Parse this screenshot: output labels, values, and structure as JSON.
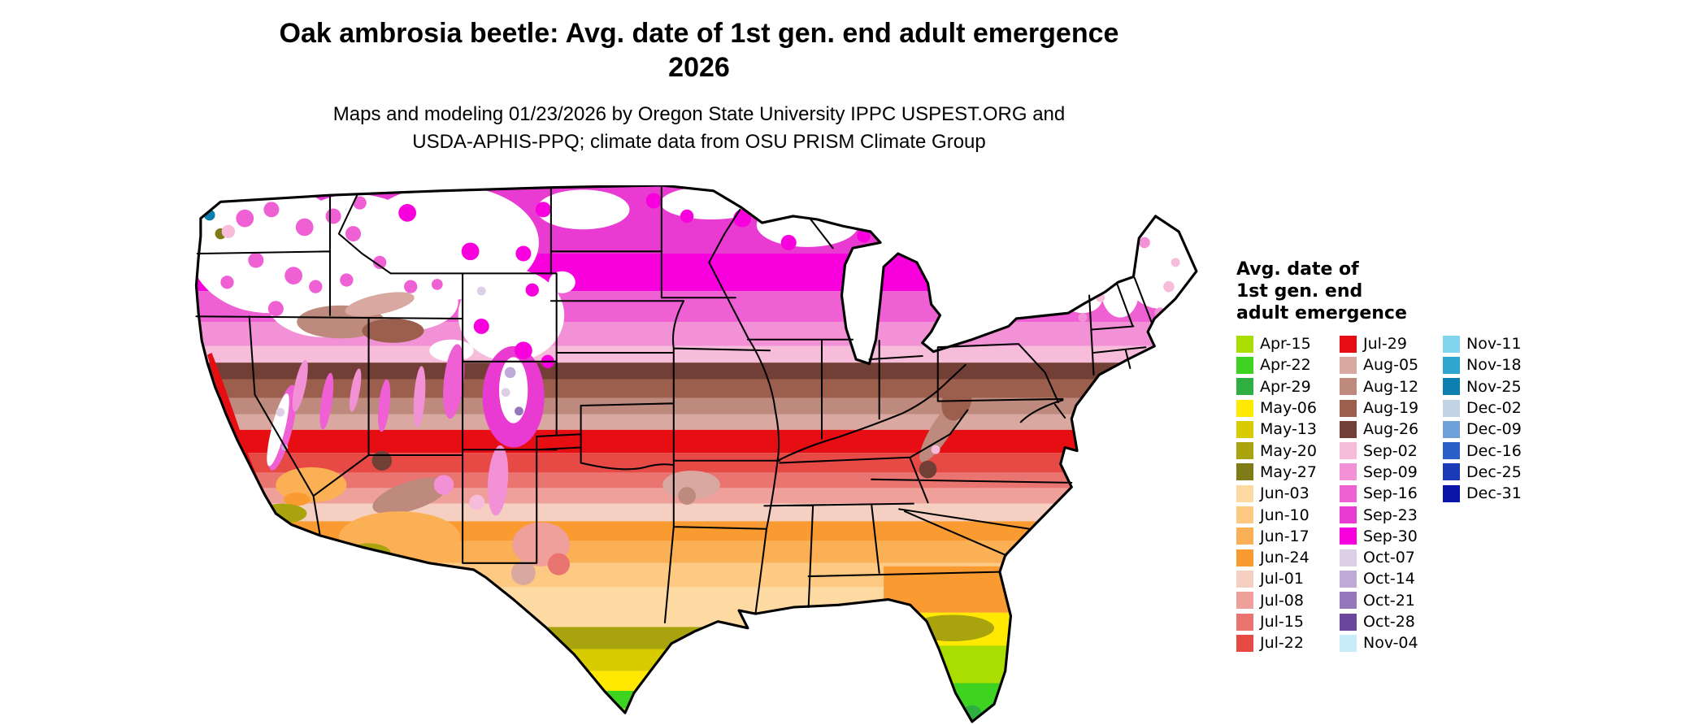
{
  "title": {
    "line1": "Oak ambrosia beetle: Avg. date of 1st gen. end adult emergence",
    "line2": "2026"
  },
  "subtitle": {
    "line1": "Maps and modeling 01/23/2026 by Oregon State University IPPC USPEST.ORG and",
    "line2": "USDA-APHIS-PPQ; climate data from OSU PRISM Climate Group"
  },
  "colors": {
    "background": "#ffffff",
    "map_outline": "#000000",
    "no_data": "#ffffff"
  },
  "legend": {
    "title_lines": [
      "Avg. date of",
      "1st gen. end",
      "adult emergence"
    ],
    "columns": [
      [
        {
          "label": "Apr-15",
          "color": "#aade00"
        },
        {
          "label": "Apr-22",
          "color": "#3ed321"
        },
        {
          "label": "Apr-29",
          "color": "#2fae41"
        },
        {
          "label": "May-06",
          "color": "#ffe900"
        },
        {
          "label": "May-13",
          "color": "#d8cb00"
        },
        {
          "label": "May-20",
          "color": "#a9a40e"
        },
        {
          "label": "May-27",
          "color": "#7f7b17"
        },
        {
          "label": "Jun-03",
          "color": "#fddaa2"
        },
        {
          "label": "Jun-10",
          "color": "#fdc983"
        },
        {
          "label": "Jun-17",
          "color": "#fcb055"
        },
        {
          "label": "Jun-24",
          "color": "#f99b31"
        },
        {
          "label": "Jul-01",
          "color": "#f5d0c2"
        },
        {
          "label": "Jul-08",
          "color": "#efa09b"
        },
        {
          "label": "Jul-15",
          "color": "#ea7470"
        },
        {
          "label": "Jul-22",
          "color": "#e74a45"
        }
      ],
      [
        {
          "label": "Jul-29",
          "color": "#e60d13"
        },
        {
          "label": "Aug-05",
          "color": "#d9a8a0"
        },
        {
          "label": "Aug-12",
          "color": "#bd8a7d"
        },
        {
          "label": "Aug-19",
          "color": "#9d5f4d"
        },
        {
          "label": "Aug-26",
          "color": "#713f35"
        },
        {
          "label": "Sep-02",
          "color": "#f8bcdb"
        },
        {
          "label": "Sep-09",
          "color": "#f391d6"
        },
        {
          "label": "Sep-16",
          "color": "#ee60d3"
        },
        {
          "label": "Sep-23",
          "color": "#e93bd1"
        },
        {
          "label": "Sep-30",
          "color": "#f800dd"
        },
        {
          "label": "Oct-07",
          "color": "#dccfe6"
        },
        {
          "label": "Oct-14",
          "color": "#bfa9d6"
        },
        {
          "label": "Oct-21",
          "color": "#9577bb"
        },
        {
          "label": "Oct-28",
          "color": "#6b479c"
        },
        {
          "label": "Nov-04",
          "color": "#c9ecfa"
        }
      ],
      [
        {
          "label": "Nov-11",
          "color": "#83d4ef"
        },
        {
          "label": "Nov-18",
          "color": "#2fa6cf"
        },
        {
          "label": "Nov-25",
          "color": "#0c7fae"
        },
        {
          "label": "Dec-02",
          "color": "#c3d3e6"
        },
        {
          "label": "Dec-09",
          "color": "#6fa0d8"
        },
        {
          "label": "Dec-16",
          "color": "#2a5fc7"
        },
        {
          "label": "Dec-25",
          "color": "#1a3ab8"
        },
        {
          "label": "Dec-31",
          "color": "#0a16aa"
        }
      ]
    ]
  }
}
